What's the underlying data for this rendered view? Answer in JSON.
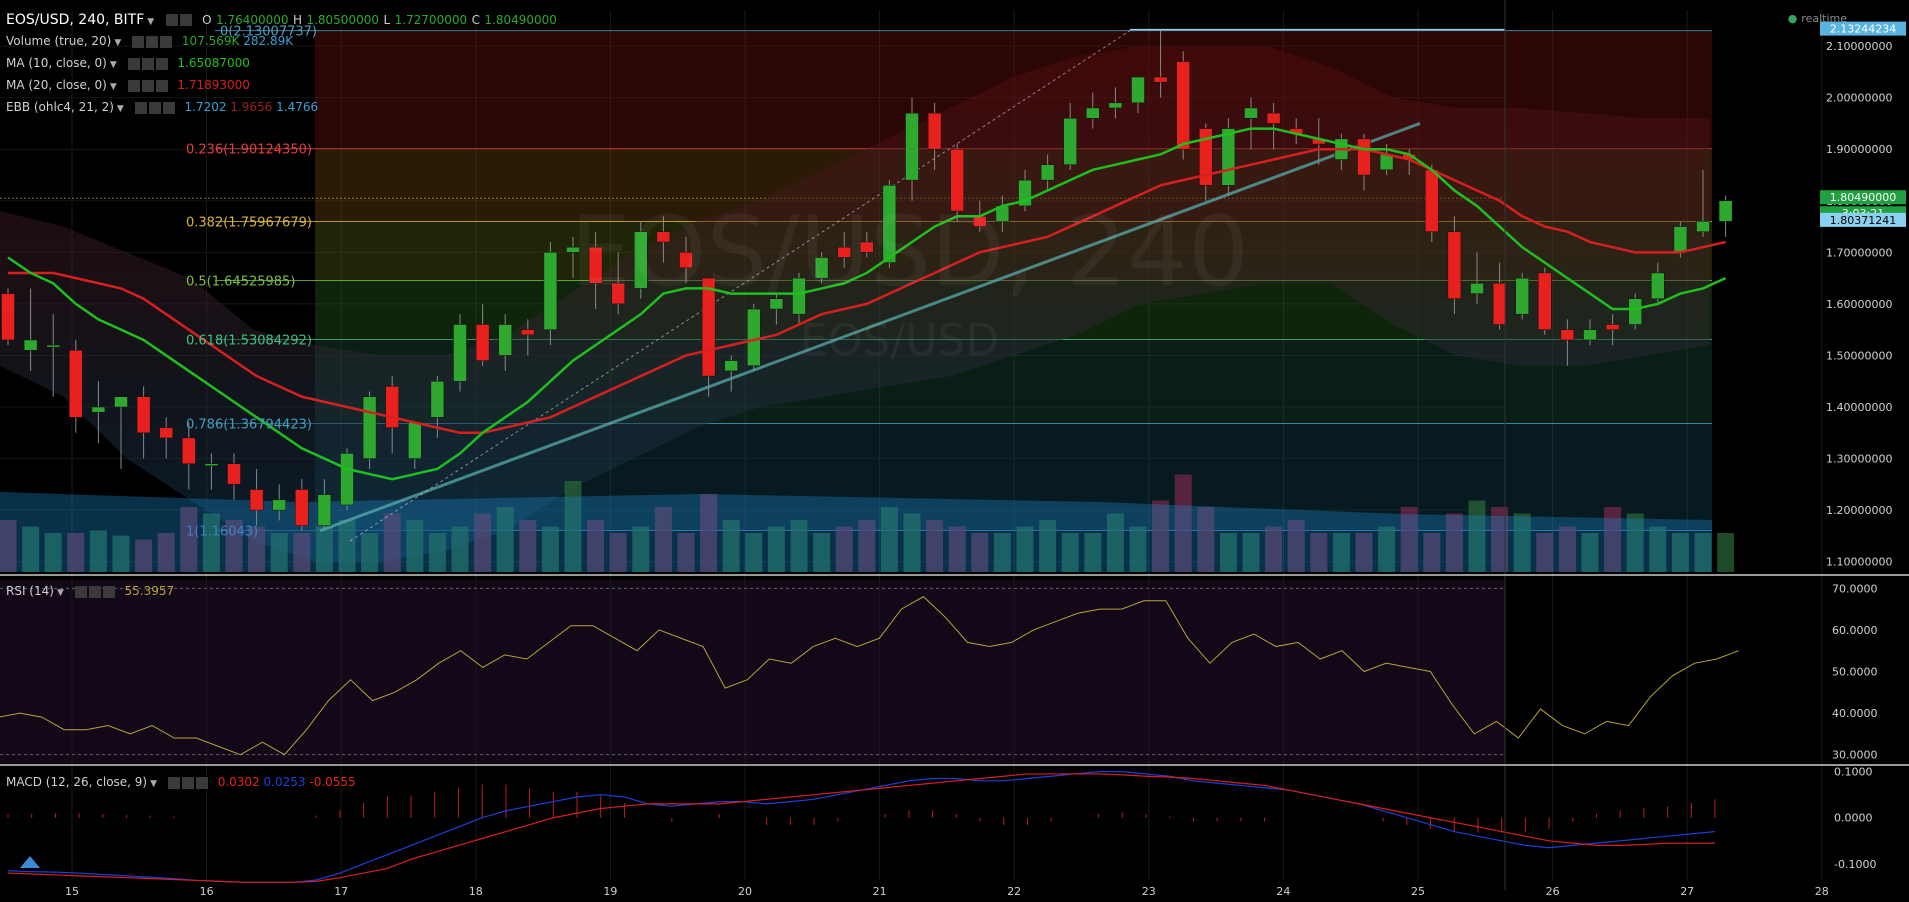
{
  "header": {
    "symbol": "EOS/USD, 240, BITF",
    "open_label": "O",
    "open": "1.76400000",
    "high_label": "H",
    "high": "1.80500000",
    "low_label": "L",
    "low": "1.72700000",
    "close_label": "C",
    "close": "1.80490000",
    "realtime": "realtime"
  },
  "legends": {
    "volume": {
      "label": "Volume (true, 20)",
      "v1": "107.569K",
      "v2": "282.89K"
    },
    "ma10": {
      "label": "MA (10, close, 0)",
      "value": "1.65087000"
    },
    "ma20": {
      "label": "MA (20, close, 0)",
      "value": "1.71893000"
    },
    "ebb": {
      "label": "EBB (ohlc4, 21, 2)",
      "v1": "1.7202",
      "v2": "1.9656",
      "v3": "1.4766"
    },
    "rsi": {
      "label": "RSI (14)",
      "value": "55.3957"
    },
    "macd": {
      "label": "MACD (12, 26, close, 9)",
      "v1": "0.0302",
      "v2": "0.0253",
      "v3": "-0.0555"
    }
  },
  "watermark": {
    "symbol": "EOS/USD, 240",
    "pair": "EOS/USD"
  },
  "colors": {
    "up": "#2ea82e",
    "down": "#e8201e",
    "ma10": "#1fbf1f",
    "ma20": "#d62020",
    "rsi": "#b8a23a",
    "macd": "#1e3fd6",
    "signal": "#d62020",
    "fib": "#d9b43a"
  },
  "chart_data": [
    {
      "type": "candlestick",
      "title": "EOS/USD, 240, BITF",
      "x_ticks": [
        "15",
        "16",
        "17",
        "18",
        "19",
        "20",
        "21",
        "22",
        "23",
        "24",
        "25",
        "26",
        "27",
        "28"
      ],
      "y_ticks": [
        "2.10000000",
        "2.00000000",
        "1.90000000",
        "1.80000000",
        "1.70000000",
        "1.60000000",
        "1.50000000",
        "1.40000000",
        "1.30000000",
        "1.20000000",
        "1.10000000"
      ],
      "ylim": [
        1.08,
        2.17
      ],
      "price_tags": [
        "2.13244234",
        "1.80490000",
        "3:03:21",
        "1.80371241"
      ],
      "fib_levels": [
        {
          "ratio": "0",
          "price": 2.13007737,
          "label": "0(2.13007737)"
        },
        {
          "ratio": "0.236",
          "price": 1.9012435,
          "label": "0.236(1.90124350)"
        },
        {
          "ratio": "0.382",
          "price": 1.75967679,
          "label": "0.382(1.75967679)"
        },
        {
          "ratio": "0.5",
          "price": 1.64525985,
          "label": "0.5(1.64525985)"
        },
        {
          "ratio": "0.618",
          "price": 1.53084292,
          "label": "0.618(1.53084292)"
        },
        {
          "ratio": "0.786",
          "price": 1.36794423,
          "label": "0.786(1.36794423)"
        },
        {
          "ratio": "1",
          "price": 1.16043,
          "label": "1(1.16043)"
        }
      ],
      "candles": [
        {
          "o": 1.62,
          "h": 1.63,
          "l": 1.52,
          "c": 1.53
        },
        {
          "o": 1.51,
          "h": 1.63,
          "l": 1.47,
          "c": 1.53
        },
        {
          "o": 1.52,
          "h": 1.58,
          "l": 1.42,
          "c": 1.52
        },
        {
          "o": 1.51,
          "h": 1.53,
          "l": 1.35,
          "c": 1.38
        },
        {
          "o": 1.39,
          "h": 1.45,
          "l": 1.33,
          "c": 1.4
        },
        {
          "o": 1.4,
          "h": 1.42,
          "l": 1.28,
          "c": 1.42
        },
        {
          "o": 1.42,
          "h": 1.44,
          "l": 1.3,
          "c": 1.35
        },
        {
          "o": 1.36,
          "h": 1.38,
          "l": 1.3,
          "c": 1.34
        },
        {
          "o": 1.34,
          "h": 1.37,
          "l": 1.24,
          "c": 1.29
        },
        {
          "o": 1.29,
          "h": 1.31,
          "l": 1.24,
          "c": 1.29
        },
        {
          "o": 1.29,
          "h": 1.31,
          "l": 1.22,
          "c": 1.25
        },
        {
          "o": 1.24,
          "h": 1.28,
          "l": 1.17,
          "c": 1.2
        },
        {
          "o": 1.2,
          "h": 1.25,
          "l": 1.18,
          "c": 1.22
        },
        {
          "o": 1.24,
          "h": 1.26,
          "l": 1.16,
          "c": 1.17
        },
        {
          "o": 1.17,
          "h": 1.26,
          "l": 1.16,
          "c": 1.23
        },
        {
          "o": 1.21,
          "h": 1.32,
          "l": 1.2,
          "c": 1.31
        },
        {
          "o": 1.3,
          "h": 1.43,
          "l": 1.28,
          "c": 1.42
        },
        {
          "o": 1.44,
          "h": 1.46,
          "l": 1.31,
          "c": 1.36
        },
        {
          "o": 1.3,
          "h": 1.37,
          "l": 1.28,
          "c": 1.37
        },
        {
          "o": 1.38,
          "h": 1.46,
          "l": 1.34,
          "c": 1.45
        },
        {
          "o": 1.45,
          "h": 1.58,
          "l": 1.43,
          "c": 1.56
        },
        {
          "o": 1.56,
          "h": 1.6,
          "l": 1.48,
          "c": 1.49
        },
        {
          "o": 1.5,
          "h": 1.58,
          "l": 1.47,
          "c": 1.56
        },
        {
          "o": 1.55,
          "h": 1.57,
          "l": 1.5,
          "c": 1.54
        },
        {
          "o": 1.55,
          "h": 1.72,
          "l": 1.52,
          "c": 1.7
        },
        {
          "o": 1.7,
          "h": 1.73,
          "l": 1.65,
          "c": 1.71
        },
        {
          "o": 1.71,
          "h": 1.74,
          "l": 1.59,
          "c": 1.64
        },
        {
          "o": 1.64,
          "h": 1.7,
          "l": 1.58,
          "c": 1.6
        },
        {
          "o": 1.63,
          "h": 1.76,
          "l": 1.61,
          "c": 1.74
        },
        {
          "o": 1.74,
          "h": 1.77,
          "l": 1.68,
          "c": 1.72
        },
        {
          "o": 1.7,
          "h": 1.73,
          "l": 1.64,
          "c": 1.67
        },
        {
          "o": 1.65,
          "h": 1.65,
          "l": 1.42,
          "c": 1.46
        },
        {
          "o": 1.47,
          "h": 1.5,
          "l": 1.43,
          "c": 1.49
        },
        {
          "o": 1.48,
          "h": 1.6,
          "l": 1.47,
          "c": 1.59
        },
        {
          "o": 1.59,
          "h": 1.62,
          "l": 1.56,
          "c": 1.61
        },
        {
          "o": 1.58,
          "h": 1.66,
          "l": 1.56,
          "c": 1.65
        },
        {
          "o": 1.65,
          "h": 1.7,
          "l": 1.64,
          "c": 1.69
        },
        {
          "o": 1.71,
          "h": 1.74,
          "l": 1.67,
          "c": 1.69
        },
        {
          "o": 1.72,
          "h": 1.74,
          "l": 1.69,
          "c": 1.7
        },
        {
          "o": 1.68,
          "h": 1.84,
          "l": 1.67,
          "c": 1.83
        },
        {
          "o": 1.84,
          "h": 2.0,
          "l": 1.8,
          "c": 1.97
        },
        {
          "o": 1.97,
          "h": 1.99,
          "l": 1.86,
          "c": 1.9
        },
        {
          "o": 1.9,
          "h": 1.91,
          "l": 1.76,
          "c": 1.78
        },
        {
          "o": 1.77,
          "h": 1.8,
          "l": 1.74,
          "c": 1.75
        },
        {
          "o": 1.76,
          "h": 1.81,
          "l": 1.74,
          "c": 1.79
        },
        {
          "o": 1.79,
          "h": 1.86,
          "l": 1.78,
          "c": 1.84
        },
        {
          "o": 1.84,
          "h": 1.89,
          "l": 1.82,
          "c": 1.87
        },
        {
          "o": 1.87,
          "h": 1.99,
          "l": 1.86,
          "c": 1.96
        },
        {
          "o": 1.96,
          "h": 2.01,
          "l": 1.94,
          "c": 1.98
        },
        {
          "o": 1.98,
          "h": 2.02,
          "l": 1.96,
          "c": 1.99
        },
        {
          "o": 1.99,
          "h": 2.04,
          "l": 1.97,
          "c": 2.04
        },
        {
          "o": 2.04,
          "h": 2.13,
          "l": 2.0,
          "c": 2.03
        },
        {
          "o": 2.07,
          "h": 2.09,
          "l": 1.88,
          "c": 1.9
        },
        {
          "o": 1.94,
          "h": 1.95,
          "l": 1.8,
          "c": 1.83
        },
        {
          "o": 1.83,
          "h": 1.96,
          "l": 1.81,
          "c": 1.94
        },
        {
          "o": 1.96,
          "h": 2.0,
          "l": 1.9,
          "c": 1.98
        },
        {
          "o": 1.97,
          "h": 1.99,
          "l": 1.9,
          "c": 1.95
        },
        {
          "o": 1.94,
          "h": 1.96,
          "l": 1.91,
          "c": 1.93
        },
        {
          "o": 1.92,
          "h": 1.96,
          "l": 1.87,
          "c": 1.91
        },
        {
          "o": 1.88,
          "h": 1.93,
          "l": 1.86,
          "c": 1.92
        },
        {
          "o": 1.92,
          "h": 1.93,
          "l": 1.82,
          "c": 1.85
        },
        {
          "o": 1.86,
          "h": 1.91,
          "l": 1.85,
          "c": 1.89
        },
        {
          "o": 1.89,
          "h": 1.9,
          "l": 1.85,
          "c": 1.88
        },
        {
          "o": 1.86,
          "h": 1.87,
          "l": 1.72,
          "c": 1.74
        },
        {
          "o": 1.74,
          "h": 1.77,
          "l": 1.58,
          "c": 1.61
        },
        {
          "o": 1.62,
          "h": 1.7,
          "l": 1.6,
          "c": 1.64
        },
        {
          "o": 1.64,
          "h": 1.68,
          "l": 1.55,
          "c": 1.56
        },
        {
          "o": 1.58,
          "h": 1.66,
          "l": 1.57,
          "c": 1.65
        },
        {
          "o": 1.66,
          "h": 1.67,
          "l": 1.54,
          "c": 1.55
        },
        {
          "o": 1.55,
          "h": 1.57,
          "l": 1.48,
          "c": 1.53
        },
        {
          "o": 1.53,
          "h": 1.57,
          "l": 1.52,
          "c": 1.55
        },
        {
          "o": 1.56,
          "h": 1.58,
          "l": 1.52,
          "c": 1.55
        },
        {
          "o": 1.56,
          "h": 1.62,
          "l": 1.55,
          "c": 1.61
        },
        {
          "o": 1.61,
          "h": 1.68,
          "l": 1.6,
          "c": 1.66
        },
        {
          "o": 1.7,
          "h": 1.76,
          "l": 1.69,
          "c": 1.75
        },
        {
          "o": 1.74,
          "h": 1.86,
          "l": 1.73,
          "c": 1.76
        },
        {
          "o": 1.76,
          "h": 1.81,
          "l": 1.73,
          "c": 1.8
        }
      ],
      "ma10": [
        1.69,
        1.66,
        1.64,
        1.6,
        1.57,
        1.55,
        1.53,
        1.5,
        1.47,
        1.44,
        1.41,
        1.38,
        1.35,
        1.32,
        1.3,
        1.28,
        1.27,
        1.26,
        1.27,
        1.28,
        1.31,
        1.35,
        1.38,
        1.41,
        1.45,
        1.49,
        1.52,
        1.55,
        1.58,
        1.62,
        1.63,
        1.63,
        1.62,
        1.62,
        1.62,
        1.62,
        1.63,
        1.64,
        1.66,
        1.69,
        1.72,
        1.75,
        1.77,
        1.77,
        1.79,
        1.8,
        1.82,
        1.84,
        1.86,
        1.87,
        1.88,
        1.89,
        1.91,
        1.92,
        1.93,
        1.94,
        1.94,
        1.93,
        1.92,
        1.91,
        1.9,
        1.9,
        1.89,
        1.86,
        1.82,
        1.79,
        1.75,
        1.71,
        1.68,
        1.65,
        1.62,
        1.59,
        1.59,
        1.6,
        1.62,
        1.63,
        1.65
      ],
      "ma20": [
        1.66,
        1.66,
        1.66,
        1.65,
        1.64,
        1.63,
        1.61,
        1.58,
        1.55,
        1.52,
        1.49,
        1.46,
        1.44,
        1.42,
        1.41,
        1.4,
        1.39,
        1.38,
        1.37,
        1.36,
        1.35,
        1.35,
        1.36,
        1.37,
        1.38,
        1.4,
        1.42,
        1.44,
        1.46,
        1.48,
        1.5,
        1.51,
        1.52,
        1.53,
        1.54,
        1.56,
        1.58,
        1.59,
        1.6,
        1.62,
        1.64,
        1.66,
        1.68,
        1.7,
        1.71,
        1.72,
        1.73,
        1.75,
        1.77,
        1.79,
        1.81,
        1.83,
        1.84,
        1.85,
        1.86,
        1.87,
        1.88,
        1.89,
        1.9,
        1.9,
        1.9,
        1.89,
        1.88,
        1.86,
        1.84,
        1.82,
        1.8,
        1.77,
        1.75,
        1.74,
        1.72,
        1.71,
        1.7,
        1.7,
        1.7,
        1.71,
        1.72
      ]
    },
    {
      "type": "line",
      "title": "RSI (14)",
      "y_ticks": [
        "70.0000",
        "60.0000",
        "50.0000",
        "40.0000",
        "30.0000"
      ],
      "ylim": [
        28,
        72
      ],
      "values": [
        39,
        40,
        39,
        36,
        36,
        37,
        35,
        37,
        34,
        34,
        32,
        30,
        33,
        30,
        36,
        43,
        48,
        43,
        45,
        48,
        52,
        55,
        51,
        54,
        53,
        57,
        61,
        61,
        58,
        55,
        60,
        58,
        56,
        46,
        48,
        53,
        52,
        56,
        58,
        56,
        58,
        65,
        68,
        63,
        57,
        56,
        57,
        60,
        62,
        64,
        65,
        65,
        67,
        67,
        58,
        52,
        57,
        59,
        56,
        57,
        53,
        55,
        50,
        52,
        51,
        50,
        42,
        35,
        38,
        34,
        41,
        37,
        35,
        38,
        37,
        44,
        49,
        52,
        53,
        55
      ]
    },
    {
      "type": "line",
      "title": "MACD (12, 26, close, 9)",
      "y_ticks": [
        "0.1000",
        "0.0000",
        "-0.1000"
      ],
      "ylim": [
        -0.135,
        0.11
      ],
      "series": [
        {
          "name": "MACD",
          "values": [
            -0.115,
            -0.117,
            -0.118,
            -0.12,
            -0.123,
            -0.126,
            -0.129,
            -0.132,
            -0.136,
            -0.138,
            -0.14,
            -0.14,
            -0.14,
            -0.135,
            -0.12,
            -0.1,
            -0.08,
            -0.06,
            -0.04,
            -0.02,
            0.0,
            0.015,
            0.025,
            0.035,
            0.045,
            0.05,
            0.045,
            0.03,
            0.025,
            0.03,
            0.035,
            0.035,
            0.03,
            0.035,
            0.04,
            0.05,
            0.06,
            0.07,
            0.08,
            0.085,
            0.085,
            0.08,
            0.08,
            0.085,
            0.09,
            0.095,
            0.1,
            0.1,
            0.095,
            0.09,
            0.08,
            0.075,
            0.07,
            0.065,
            0.06,
            0.05,
            0.04,
            0.03,
            0.015,
            0.0,
            -0.015,
            -0.03,
            -0.04,
            -0.05,
            -0.06,
            -0.065,
            -0.06,
            -0.055,
            -0.05,
            -0.045,
            -0.04,
            -0.035,
            -0.03
          ]
        },
        {
          "name": "Signal",
          "values": [
            -0.12,
            -0.122,
            -0.124,
            -0.126,
            -0.128,
            -0.13,
            -0.132,
            -0.134,
            -0.136,
            -0.138,
            -0.14,
            -0.14,
            -0.14,
            -0.138,
            -0.13,
            -0.12,
            -0.11,
            -0.09,
            -0.075,
            -0.06,
            -0.045,
            -0.03,
            -0.015,
            0.0,
            0.01,
            0.02,
            0.025,
            0.03,
            0.03,
            0.03,
            0.03,
            0.035,
            0.04,
            0.045,
            0.05,
            0.055,
            0.06,
            0.065,
            0.07,
            0.075,
            0.08,
            0.085,
            0.09,
            0.095,
            0.095,
            0.095,
            0.095,
            0.093,
            0.09,
            0.088,
            0.085,
            0.08,
            0.075,
            0.07,
            0.06,
            0.05,
            0.04,
            0.03,
            0.02,
            0.01,
            0.0,
            -0.01,
            -0.02,
            -0.03,
            -0.04,
            -0.05,
            -0.055,
            -0.06,
            -0.06,
            -0.058,
            -0.055,
            -0.055,
            -0.055
          ]
        }
      ]
    }
  ]
}
